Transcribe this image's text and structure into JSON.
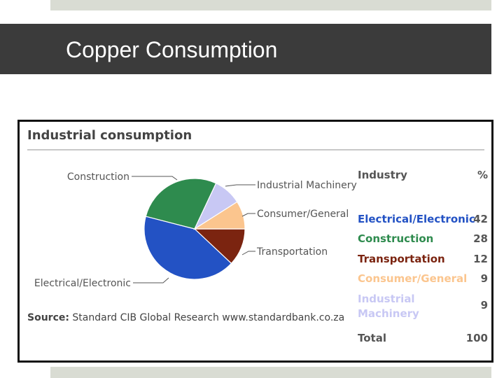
{
  "slide": {
    "title": "Copper Consumption"
  },
  "chart_data": {
    "type": "pie",
    "title": "Industrial consumption",
    "source_label": "Source:",
    "source_text": "Standard CIB Global Research www.standardbank.co.za",
    "slices": [
      {
        "label": "Electrical/Electronic",
        "value": 42,
        "color": "#2352c4"
      },
      {
        "label": "Construction",
        "value": 28,
        "color": "#2e8b4e"
      },
      {
        "label": "Industrial Machinery",
        "value": 9,
        "color": "#c8c8f4"
      },
      {
        "label": "Consumer/General",
        "value": 9,
        "color": "#fbc58e"
      },
      {
        "label": "Transportation",
        "value": 12,
        "color": "#7b2410"
      }
    ],
    "table": {
      "header": {
        "industry": "Industry",
        "percent": "%"
      },
      "rows": [
        {
          "label": "Electrical/Electronic",
          "value": "42",
          "color": "#2352c4"
        },
        {
          "label": "Construction",
          "value": "28",
          "color": "#2e8b4e"
        },
        {
          "label": "Transportation",
          "value": "12",
          "color": "#7b2410"
        },
        {
          "label": "Consumer/General",
          "value": "9",
          "color": "#fbc58e"
        },
        {
          "label": "Industrial Machinery",
          "value": "9",
          "color": "#c8c8f4"
        }
      ],
      "total": {
        "label": "Total",
        "value": "100"
      }
    }
  }
}
